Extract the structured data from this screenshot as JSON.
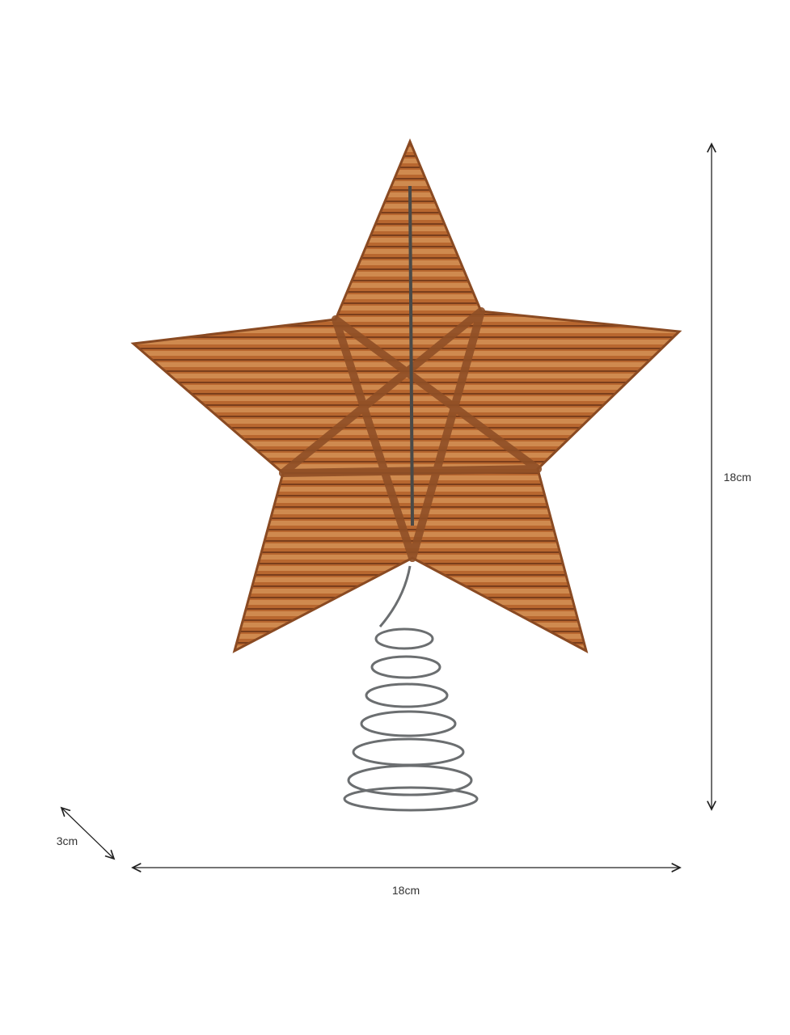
{
  "dimensions": {
    "height_label": "18cm",
    "width_label": "18cm",
    "depth_label": "3cm"
  },
  "colors": {
    "rattan": "#b5652e",
    "rattan_light": "#d59a63",
    "rattan_dark": "#7a3e1c",
    "wire": "#6b6e70",
    "arrow": "#222222"
  }
}
